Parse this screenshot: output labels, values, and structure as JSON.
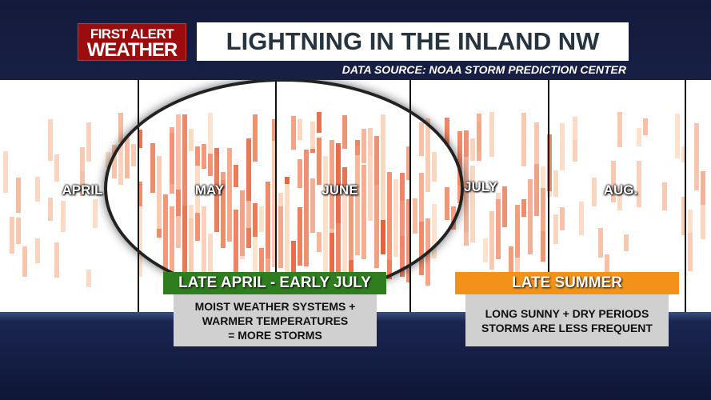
{
  "logo": {
    "line1": "FIRST ALERT",
    "line2": "WEATHER"
  },
  "title": "LIGHTNING IN THE INLAND NW",
  "source": "DATA SOURCE: NOAA STORM PREDICTION CENTER",
  "chart_data": {
    "type": "heatmap",
    "title": "LIGHTNING IN THE INLAND NW",
    "categories": [
      "APRIL",
      "MAY",
      "JUNE",
      "JULY",
      "AUG."
    ],
    "relative_activity": [
      0.25,
      0.7,
      0.8,
      0.55,
      0.3
    ],
    "colors": {
      "low": "#fde4cf",
      "high": "#e8603a"
    }
  },
  "callouts": [
    {
      "header": "LATE APRIL - EARLY JULY",
      "header_color": "#2e7d1f",
      "lines": [
        "MOIST WEATHER SYSTEMS +",
        "WARMER TEMPERATURES",
        "= MORE STORMS"
      ]
    },
    {
      "header": "LATE SUMMER",
      "header_color": "#f39219",
      "lines": [
        "LONG SUNNY + DRY PERIODS",
        "STORMS ARE LESS FREQUENT"
      ]
    }
  ]
}
